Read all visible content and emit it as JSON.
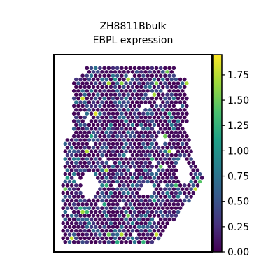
{
  "chart_data": {
    "type": "scatter",
    "title_line1": "ZH8811Bbulk",
    "title_line2": "EBPL expression",
    "xlabel": "",
    "ylabel": "",
    "colormap": "viridis",
    "grid": false,
    "colorbar": {
      "min": 0.0,
      "max": 1.95,
      "ticks": [
        0.0,
        0.25,
        0.5,
        0.75,
        1.0,
        1.25,
        1.5,
        1.75
      ],
      "tick_labels": [
        "0.00",
        "0.25",
        "0.50",
        "0.75",
        "1.00",
        "1.25",
        "1.50",
        "1.75"
      ]
    },
    "description_values": "Hexagonal spatial spots; most spots have value near 0 (dark purple), with scattered spots at 0.25–0.75 and a few bright spots up to about 1.9."
  },
  "colors": {
    "low": "#440154",
    "high": "#fde725",
    "frame": "#000000"
  }
}
